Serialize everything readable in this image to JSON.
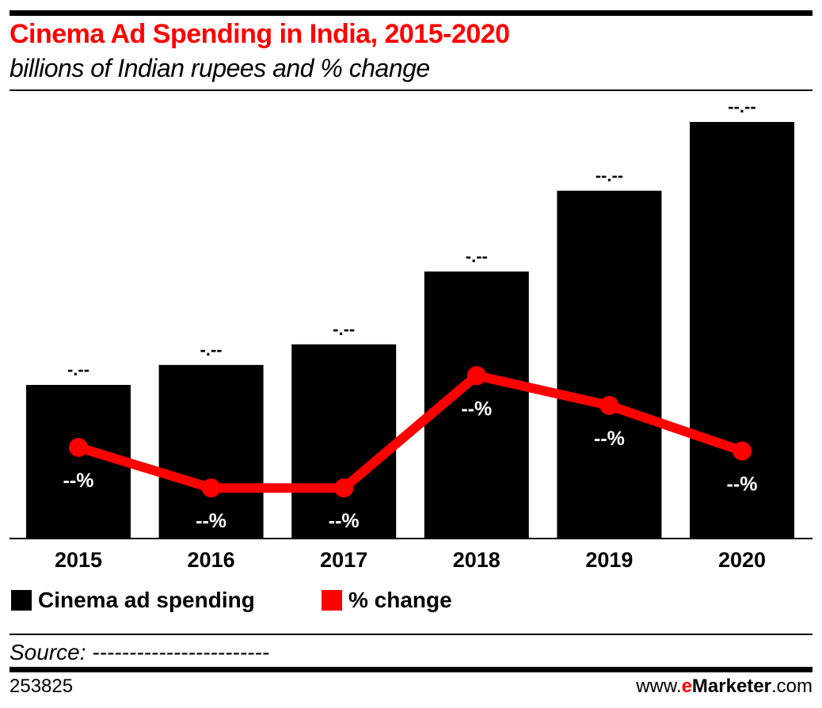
{
  "chart_data": {
    "type": "bar+line",
    "title": "Cinema Ad Spending in India, 2015-2020",
    "subtitle": "billions of Indian rupees and % change",
    "categories": [
      "2015",
      "2016",
      "2017",
      "2018",
      "2019",
      "2020"
    ],
    "series": [
      {
        "name": "Cinema ad spending",
        "type": "bar",
        "color": "#000000",
        "values": [
          4.85,
          5.48,
          6.13,
          8.43,
          10.98,
          13.15
        ],
        "labels": [
          "-.--",
          "-.--",
          "-.--",
          "-.--",
          "--.--",
          "--.--"
        ]
      },
      {
        "name": "% change",
        "type": "line",
        "color": "#ff0000",
        "values": [
          21.5,
          12.4,
          12.4,
          37.6,
          30.9,
          20.7
        ],
        "labels": [
          "--%",
          "--%",
          "--%",
          "--%",
          "--%",
          "--%"
        ]
      }
    ],
    "grid": false,
    "legend": "bottom-left"
  },
  "footer": {
    "source": "Source: ------------------------",
    "chart_id": "253825",
    "brand_prefix": "www.",
    "brand_e": "e",
    "brand_name": "Marketer",
    "brand_suffix": ".com"
  }
}
